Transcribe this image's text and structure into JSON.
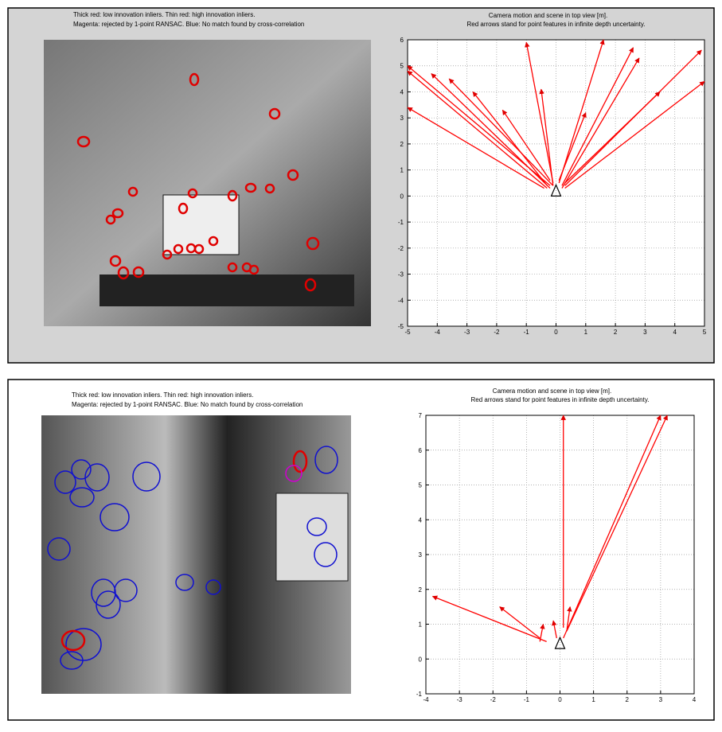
{
  "image_captions": [
    [
      "Thick red: low innovation inliers. Thin red: high innovation inliers.",
      "Magenta: rejected by 1-point RANSAC. Blue: No match found by cross-correlation"
    ],
    [
      "Thick red: low innovation inliers. Thin red: high innovation inliers.",
      "Magenta: rejected by 1-point RANSAC. Blue: No match found by cross-correlation"
    ]
  ],
  "chart_data": [
    {
      "type": "quiver",
      "title": "Camera motion and scene in top view [m].",
      "subtitle": "Red arrows stand for point features in infinite depth uncertainty.",
      "xlim": [
        -5,
        5
      ],
      "ylim": [
        -5,
        6
      ],
      "xticks": [
        -5,
        -4,
        -3,
        -2,
        -1,
        0,
        1,
        2,
        3,
        4,
        5
      ],
      "yticks": [
        -5,
        -4,
        -3,
        -2,
        -1,
        0,
        1,
        2,
        3,
        4,
        5,
        6
      ],
      "grid": true,
      "camera": {
        "x": 0,
        "y": 0
      },
      "arrows": {
        "color": "#ff0000",
        "x_start": [
          -0.2,
          -0.3,
          -0.2,
          -0.1,
          -0.1,
          -0.1,
          0.1,
          0.2,
          0.2,
          0.3,
          0.3,
          -0.4,
          -0.3,
          0.3,
          0.1,
          -0.2
        ],
        "y_start": [
          0.4,
          0.3,
          0.3,
          0.4,
          0.5,
          0.4,
          0.5,
          0.4,
          0.3,
          0.4,
          0.3,
          0.3,
          0.4,
          0.5,
          0.6,
          0.6
        ],
        "x": [
          -5,
          -5,
          -4.2,
          -3.6,
          -1.0,
          -0.5,
          1.6,
          2.6,
          2.8,
          4.9,
          5,
          -5,
          -2.8,
          3.5,
          1.0,
          -1.8
        ],
        "y": [
          5.0,
          4.8,
          4.7,
          4.5,
          5.9,
          4.1,
          6.0,
          5.7,
          5.3,
          5.6,
          4.4,
          3.4,
          4.0,
          4.0,
          3.2,
          3.3
        ]
      }
    },
    {
      "type": "quiver",
      "title": "Camera motion and scene in top view [m].",
      "subtitle": "Red arrows stand for point features in infinite depth uncertainty.",
      "xlim": [
        -4,
        4
      ],
      "ylim": [
        -1,
        7
      ],
      "xticks": [
        -4,
        -3,
        -2,
        -1,
        0,
        1,
        2,
        3,
        4
      ],
      "yticks": [
        -1,
        0,
        1,
        2,
        3,
        4,
        5,
        6,
        7
      ],
      "grid": true,
      "camera": {
        "x": 0,
        "y": 0.3
      },
      "arrows": {
        "color": "#ff0000",
        "x_start": [
          0.1,
          0.1,
          0.2,
          -0.4,
          -0.6,
          -0.6,
          0.2,
          -0.1
        ],
        "y_start": [
          0.9,
          0.6,
          0.8,
          0.5,
          0.6,
          0.5,
          0.8,
          0.6
        ],
        "x": [
          0.1,
          3.0,
          3.2,
          -3.8,
          -1.8,
          -0.5,
          0.3,
          -0.2
        ],
        "y": [
          7.0,
          7.0,
          7.0,
          1.8,
          1.5,
          1.0,
          1.5,
          1.1
        ]
      }
    }
  ]
}
